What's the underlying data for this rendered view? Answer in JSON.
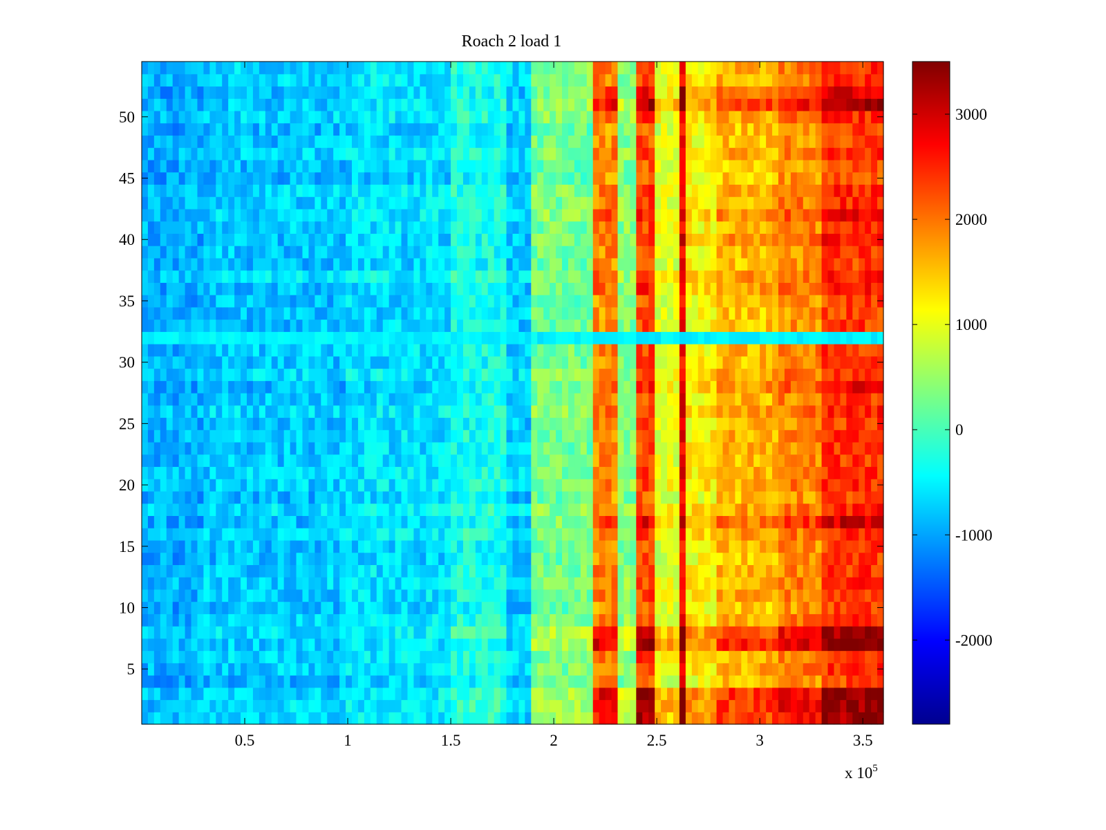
{
  "chart_data": {
    "type": "heatmap",
    "title": "Roach 2 load 1",
    "xlabel": "",
    "ylabel": "",
    "x_exponent_label": "x 10",
    "x_exponent_power": "5",
    "xlim": [
      0,
      360000
    ],
    "ylim": [
      0.5,
      54.5
    ],
    "x_ticks": [
      50000,
      100000,
      150000,
      200000,
      250000,
      300000,
      350000
    ],
    "x_tick_labels": [
      "0.5",
      "1",
      "1.5",
      "2",
      "2.5",
      "3",
      "3.5"
    ],
    "y_ticks": [
      5,
      10,
      15,
      20,
      25,
      30,
      35,
      40,
      45,
      50
    ],
    "y_tick_labels": [
      "5",
      "10",
      "15",
      "20",
      "25",
      "30",
      "35",
      "40",
      "45",
      "50"
    ],
    "rows": 54,
    "colormap": "jet",
    "clim": [
      -2800,
      3500
    ],
    "colorbar_ticks": [
      -2000,
      -1000,
      0,
      1000,
      2000,
      3000
    ],
    "colorbar_tick_labels": [
      "-2000",
      "-1000",
      "0",
      "1000",
      "2000",
      "3000"
    ],
    "column_profile": [
      {
        "x0": 0,
        "x1": 30000,
        "value": -900
      },
      {
        "x0": 30000,
        "x1": 100000,
        "value": -750
      },
      {
        "x0": 100000,
        "x1": 150000,
        "value": -600
      },
      {
        "x0": 150000,
        "x1": 178000,
        "value": -300
      },
      {
        "x0": 178000,
        "x1": 188000,
        "value": -700
      },
      {
        "x0": 188000,
        "x1": 218000,
        "value": 300
      },
      {
        "x0": 218000,
        "x1": 231000,
        "value": 1900
      },
      {
        "x0": 231000,
        "x1": 241000,
        "value": 400
      },
      {
        "x0": 241000,
        "x1": 248000,
        "value": 2300
      },
      {
        "x0": 248000,
        "x1": 260000,
        "value": 1000
      },
      {
        "x0": 260000,
        "x1": 264000,
        "value": 2800
      },
      {
        "x0": 264000,
        "x1": 280000,
        "value": 1200
      },
      {
        "x0": 280000,
        "x1": 310000,
        "value": 1600
      },
      {
        "x0": 310000,
        "x1": 330000,
        "value": 1900
      },
      {
        "x0": 330000,
        "x1": 360000,
        "value": 2400
      }
    ],
    "row_offsets": {
      "1": 900,
      "2": 900,
      "3": 1000,
      "7": 1200,
      "8": 800,
      "17": 700,
      "28": 500,
      "36": 300,
      "40": 400,
      "42": 300,
      "51": 1000,
      "52": 600
    },
    "anomaly_row": 32,
    "anomaly_row_value": -500
  }
}
